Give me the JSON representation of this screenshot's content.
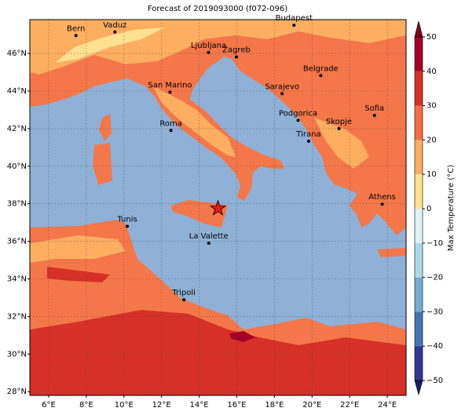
{
  "title": "Forecast of 2019093000 (f072-096)",
  "map": {
    "lonlim": [
      5,
      25
    ],
    "latlim": [
      27.8,
      47.8
    ],
    "lon_ticks": [
      {
        "value": 6,
        "label": "6°E"
      },
      {
        "value": 8,
        "label": "8°E"
      },
      {
        "value": 10,
        "label": "10°E"
      },
      {
        "value": 12,
        "label": "12°E"
      },
      {
        "value": 14,
        "label": "14°E"
      },
      {
        "value": 16,
        "label": "16°E"
      },
      {
        "value": 18,
        "label": "18°E"
      },
      {
        "value": 20,
        "label": "20°E"
      },
      {
        "value": 22,
        "label": "22°E"
      },
      {
        "value": 24,
        "label": "24°E"
      }
    ],
    "lat_ticks": [
      {
        "value": 28,
        "label": "28°N"
      },
      {
        "value": 30,
        "label": "30°N"
      },
      {
        "value": 32,
        "label": "32°N"
      },
      {
        "value": 34,
        "label": "34°N"
      },
      {
        "value": 36,
        "label": "36°N"
      },
      {
        "value": 38,
        "label": "38°N"
      },
      {
        "value": 40,
        "label": "40°N"
      },
      {
        "value": 42,
        "label": "42°N"
      },
      {
        "value": 44,
        "label": "44°N"
      },
      {
        "value": 46,
        "label": "46°N"
      }
    ],
    "marker": {
      "lon": 15.0,
      "lat": 37.75,
      "color": "#e41a1c"
    }
  },
  "cities": [
    {
      "name": "Bern",
      "lon": 7.45,
      "lat": 46.95
    },
    {
      "name": "Vaduz",
      "lon": 9.52,
      "lat": 47.14
    },
    {
      "name": "Budapest",
      "lon": 19.04,
      "lat": 47.5
    },
    {
      "name": "Ljubljana",
      "lon": 14.5,
      "lat": 46.05
    },
    {
      "name": "Zagreb",
      "lon": 15.98,
      "lat": 45.81
    },
    {
      "name": "Belgrade",
      "lon": 20.46,
      "lat": 44.82
    },
    {
      "name": "San Marino",
      "lon": 12.45,
      "lat": 43.94
    },
    {
      "name": "Sarajevo",
      "lon": 18.41,
      "lat": 43.86
    },
    {
      "name": "Sofia",
      "lon": 23.32,
      "lat": 42.7
    },
    {
      "name": "Podgorica",
      "lon": 19.26,
      "lat": 42.44
    },
    {
      "name": "Skopje",
      "lon": 21.43,
      "lat": 42.0
    },
    {
      "name": "Roma",
      "lon": 12.5,
      "lat": 41.9
    },
    {
      "name": "Tirana",
      "lon": 19.82,
      "lat": 41.33
    },
    {
      "name": "Athens",
      "lon": 23.73,
      "lat": 37.98
    },
    {
      "name": "Tunis",
      "lon": 10.18,
      "lat": 36.8
    },
    {
      "name": "La Valette",
      "lon": 14.51,
      "lat": 35.9
    },
    {
      "name": "Tripoli",
      "lon": 13.19,
      "lat": 32.89
    }
  ],
  "colorbar": {
    "label": "Max Temperature (°C)",
    "lim": [
      -50,
      50
    ],
    "ticks": [
      {
        "value": -50,
        "label": "−50"
      },
      {
        "value": -40,
        "label": "−40"
      },
      {
        "value": -30,
        "label": "−30"
      },
      {
        "value": -20,
        "label": "−20"
      },
      {
        "value": -10,
        "label": "−10"
      },
      0,
      10,
      20,
      30,
      40,
      50
    ],
    "colors": [
      "#313695",
      "#4575b4",
      "#74add1",
      "#abd9e9",
      "#e0f3f8",
      "#fee090",
      "#fdae61",
      "#f46d43",
      "#d73027",
      "#a50026"
    ],
    "under_color": "#1a1a6e",
    "over_color": "#800020"
  }
}
